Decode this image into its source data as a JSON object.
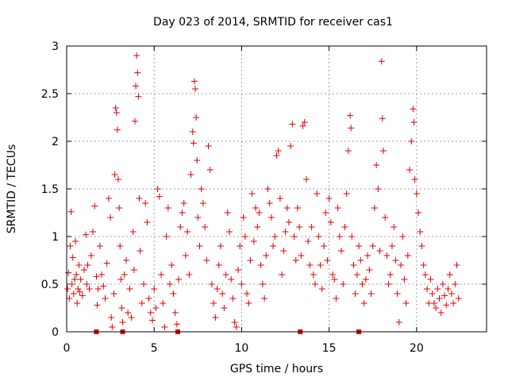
{
  "chart_data": {
    "type": "scatter",
    "title": "Day 023 of 2014, SRMTID for receiver cas1",
    "xlabel": "GPS time / hours",
    "ylabel": "SRMTID / TECUs",
    "xlim": [
      0,
      24
    ],
    "ylim": [
      0,
      3
    ],
    "x_ticks": [
      0,
      5,
      10,
      15,
      20
    ],
    "x_tick_labels": [
      "0",
      "5",
      "10",
      "15",
      "20"
    ],
    "y_ticks": [
      0,
      0.5,
      1,
      1.5,
      2,
      2.5,
      3
    ],
    "y_tick_labels": [
      "0",
      "0.5",
      "1",
      "1.5",
      "2",
      "2.5",
      "3"
    ],
    "grid": true,
    "marker": "plus",
    "series": [
      {
        "name": "SRMTID",
        "color": "#e00000",
        "points": [
          [
            0.05,
            0.45
          ],
          [
            0.1,
            0.62
          ],
          [
            0.15,
            0.35
          ],
          [
            0.2,
            0.9
          ],
          [
            0.25,
            1.26
          ],
          [
            0.3,
            0.5
          ],
          [
            0.35,
            0.78
          ],
          [
            0.4,
            0.4
          ],
          [
            0.45,
            0.55
          ],
          [
            0.5,
            0.95
          ],
          [
            0.55,
            0.6
          ],
          [
            0.6,
            0.3
          ],
          [
            0.65,
            0.45
          ],
          [
            0.7,
            0.7
          ],
          [
            0.75,
            0.42
          ],
          [
            0.8,
            0.55
          ],
          [
            0.9,
            0.38
          ],
          [
            1.0,
            0.65
          ],
          [
            1.1,
            1.02
          ],
          [
            1.15,
            0.5
          ],
          [
            1.2,
            0.7
          ],
          [
            1.3,
            0.45
          ],
          [
            1.4,
            0.8
          ],
          [
            1.5,
            1.05
          ],
          [
            1.6,
            1.32
          ],
          [
            1.7,
            0.58
          ],
          [
            1.75,
            0.28
          ],
          [
            1.8,
            0.45
          ],
          [
            1.9,
            0.9
          ],
          [
            2.0,
            0.6
          ],
          [
            2.1,
            0.48
          ],
          [
            2.2,
            0.35
          ],
          [
            2.3,
            0.72
          ],
          [
            2.4,
            1.4
          ],
          [
            2.5,
            1.2
          ],
          [
            2.55,
            0.15
          ],
          [
            2.6,
            0.05
          ],
          [
            2.7,
            0.4
          ],
          [
            2.75,
            1.65
          ],
          [
            2.8,
            2.35
          ],
          [
            2.85,
            2.3
          ],
          [
            2.9,
            2.12
          ],
          [
            2.95,
            1.6
          ],
          [
            3.0,
            1.3
          ],
          [
            3.05,
            0.9
          ],
          [
            3.1,
            0.55
          ],
          [
            3.15,
            0.25
          ],
          [
            3.2,
            0.1
          ],
          [
            3.3,
            0.6
          ],
          [
            3.4,
            0.75
          ],
          [
            3.5,
            0.2
          ],
          [
            3.6,
            0.45
          ],
          [
            3.7,
            0.15
          ],
          [
            3.8,
            1.05
          ],
          [
            3.85,
            0.65
          ],
          [
            3.9,
            2.21
          ],
          [
            3.95,
            2.58
          ],
          [
            4.0,
            2.9
          ],
          [
            4.05,
            2.72
          ],
          [
            4.1,
            2.47
          ],
          [
            4.15,
            1.4
          ],
          [
            4.2,
            0.85
          ],
          [
            4.3,
            0.3
          ],
          [
            4.4,
            0.5
          ],
          [
            4.5,
            1.35
          ],
          [
            4.6,
            1.15
          ],
          [
            4.7,
            0.35
          ],
          [
            4.8,
            0.2
          ],
          [
            4.9,
            0.12
          ],
          [
            5.0,
            0.45
          ],
          [
            5.1,
            0.25
          ],
          [
            5.2,
            1.5
          ],
          [
            5.3,
            1.42
          ],
          [
            5.4,
            0.6
          ],
          [
            5.5,
            0.3
          ],
          [
            5.6,
            0.05
          ],
          [
            5.7,
            1.0
          ],
          [
            5.8,
            1.3
          ],
          [
            5.9,
            0.5
          ],
          [
            6.0,
            0.7
          ],
          [
            6.1,
            0.4
          ],
          [
            6.2,
            0.2
          ],
          [
            6.3,
            0.08
          ],
          [
            6.4,
            0.55
          ],
          [
            6.5,
            1.1
          ],
          [
            6.6,
            1.25
          ],
          [
            6.7,
            1.35
          ],
          [
            6.8,
            0.8
          ],
          [
            6.9,
            1.05
          ],
          [
            7.0,
            0.6
          ],
          [
            7.1,
            1.65
          ],
          [
            7.2,
            2.1
          ],
          [
            7.25,
            1.98
          ],
          [
            7.3,
            2.63
          ],
          [
            7.35,
            2.55
          ],
          [
            7.4,
            2.25
          ],
          [
            7.45,
            1.8
          ],
          [
            7.5,
            1.2
          ],
          [
            7.6,
            0.9
          ],
          [
            7.7,
            1.5
          ],
          [
            7.8,
            1.35
          ],
          [
            7.9,
            1.1
          ],
          [
            8.0,
            0.75
          ],
          [
            8.1,
            1.95
          ],
          [
            8.2,
            1.7
          ],
          [
            8.3,
            0.5
          ],
          [
            8.4,
            0.3
          ],
          [
            8.5,
            0.15
          ],
          [
            8.6,
            0.45
          ],
          [
            8.7,
            0.7
          ],
          [
            8.8,
            0.9
          ],
          [
            8.9,
            0.4
          ],
          [
            9.0,
            0.25
          ],
          [
            9.1,
            0.6
          ],
          [
            9.2,
            1.25
          ],
          [
            9.3,
            1.05
          ],
          [
            9.4,
            0.55
          ],
          [
            9.5,
            0.35
          ],
          [
            9.6,
            0.1
          ],
          [
            9.7,
            0.05
          ],
          [
            9.8,
            0.65
          ],
          [
            9.9,
            0.9
          ],
          [
            10.0,
            0.5
          ],
          [
            10.1,
            1.2
          ],
          [
            10.2,
            1.0
          ],
          [
            10.3,
            0.4
          ],
          [
            10.4,
            0.3
          ],
          [
            10.5,
            0.75
          ],
          [
            10.6,
            1.45
          ],
          [
            10.7,
            0.95
          ],
          [
            10.8,
            1.3
          ],
          [
            10.9,
            1.1
          ],
          [
            11.0,
            1.25
          ],
          [
            11.1,
            0.7
          ],
          [
            11.2,
            0.5
          ],
          [
            11.3,
            0.35
          ],
          [
            11.4,
            0.8
          ],
          [
            11.5,
            1.5
          ],
          [
            11.6,
            1.35
          ],
          [
            11.7,
            1.2
          ],
          [
            11.8,
            0.9
          ],
          [
            11.9,
            1.0
          ],
          [
            12.0,
            1.85
          ],
          [
            12.1,
            1.9
          ],
          [
            12.2,
            1.4
          ],
          [
            12.3,
            0.6
          ],
          [
            12.4,
            0.85
          ],
          [
            12.5,
            1.05
          ],
          [
            12.6,
            1.3
          ],
          [
            12.7,
            1.15
          ],
          [
            12.8,
            1.95
          ],
          [
            12.9,
            2.18
          ],
          [
            13.0,
            1.0
          ],
          [
            13.1,
            0.75
          ],
          [
            13.2,
            1.3
          ],
          [
            13.3,
            1.1
          ],
          [
            13.4,
            0.8
          ],
          [
            13.5,
            2.16
          ],
          [
            13.6,
            2.2
          ],
          [
            13.7,
            1.6
          ],
          [
            13.8,
            0.95
          ],
          [
            13.9,
            0.7
          ],
          [
            14.0,
            1.1
          ],
          [
            14.1,
            0.6
          ],
          [
            14.2,
            0.5
          ],
          [
            14.3,
            1.45
          ],
          [
            14.4,
            1.0
          ],
          [
            14.5,
            0.7
          ],
          [
            14.6,
            0.45
          ],
          [
            14.7,
            0.9
          ],
          [
            14.8,
            1.25
          ],
          [
            14.9,
            0.75
          ],
          [
            15.0,
            1.4
          ],
          [
            15.1,
            1.15
          ],
          [
            15.2,
            0.6
          ],
          [
            15.3,
            0.55
          ],
          [
            15.4,
            0.35
          ],
          [
            15.5,
            1.3
          ],
          [
            15.6,
            1.0
          ],
          [
            15.7,
            0.85
          ],
          [
            15.8,
            0.5
          ],
          [
            15.9,
            1.1
          ],
          [
            16.0,
            1.45
          ],
          [
            16.1,
            1.9
          ],
          [
            16.2,
            2.27
          ],
          [
            16.25,
            2.14
          ],
          [
            16.3,
            1.0
          ],
          [
            16.4,
            0.7
          ],
          [
            16.5,
            0.4
          ],
          [
            16.6,
            0.6
          ],
          [
            16.7,
            0.9
          ],
          [
            16.8,
            0.75
          ],
          [
            16.9,
            0.5
          ],
          [
            17.0,
            0.3
          ],
          [
            17.1,
            0.55
          ],
          [
            17.2,
            0.8
          ],
          [
            17.3,
            0.65
          ],
          [
            17.4,
            0.4
          ],
          [
            17.5,
            0.9
          ],
          [
            17.6,
            1.3
          ],
          [
            17.7,
            1.75
          ],
          [
            17.8,
            1.5
          ],
          [
            17.9,
            0.85
          ],
          [
            18.0,
            2.84
          ],
          [
            18.05,
            2.24
          ],
          [
            18.1,
            1.9
          ],
          [
            18.2,
            1.2
          ],
          [
            18.3,
            0.8
          ],
          [
            18.4,
            0.5
          ],
          [
            18.5,
            0.6
          ],
          [
            18.6,
            0.9
          ],
          [
            18.7,
            1.1
          ],
          [
            18.8,
            0.75
          ],
          [
            18.9,
            0.4
          ],
          [
            19.0,
            0.1
          ],
          [
            19.1,
            0.7
          ],
          [
            19.2,
            1.0
          ],
          [
            19.3,
            0.55
          ],
          [
            19.4,
            0.3
          ],
          [
            19.5,
            0.8
          ],
          [
            19.6,
            1.7
          ],
          [
            19.7,
            2.0
          ],
          [
            19.8,
            2.34
          ],
          [
            19.85,
            2.2
          ],
          [
            19.9,
            1.6
          ],
          [
            20.0,
            1.45
          ],
          [
            20.1,
            1.25
          ],
          [
            20.2,
            1.05
          ],
          [
            20.3,
            0.9
          ],
          [
            20.4,
            0.7
          ],
          [
            20.5,
            0.6
          ],
          [
            20.6,
            0.45
          ],
          [
            20.7,
            0.3
          ],
          [
            20.8,
            0.55
          ],
          [
            20.9,
            0.4
          ],
          [
            21.0,
            0.3
          ],
          [
            21.1,
            0.25
          ],
          [
            21.2,
            0.45
          ],
          [
            21.3,
            0.35
          ],
          [
            21.4,
            0.2
          ],
          [
            21.5,
            0.5
          ],
          [
            21.6,
            0.38
          ],
          [
            21.7,
            0.28
          ],
          [
            21.8,
            0.45
          ],
          [
            21.9,
            0.6
          ],
          [
            22.0,
            0.4
          ],
          [
            22.1,
            0.3
          ],
          [
            22.2,
            0.5
          ],
          [
            22.3,
            0.7
          ],
          [
            22.4,
            0.35
          ]
        ]
      }
    ],
    "squares": [
      1.7,
      3.2,
      6.35,
      13.35,
      16.7
    ]
  }
}
